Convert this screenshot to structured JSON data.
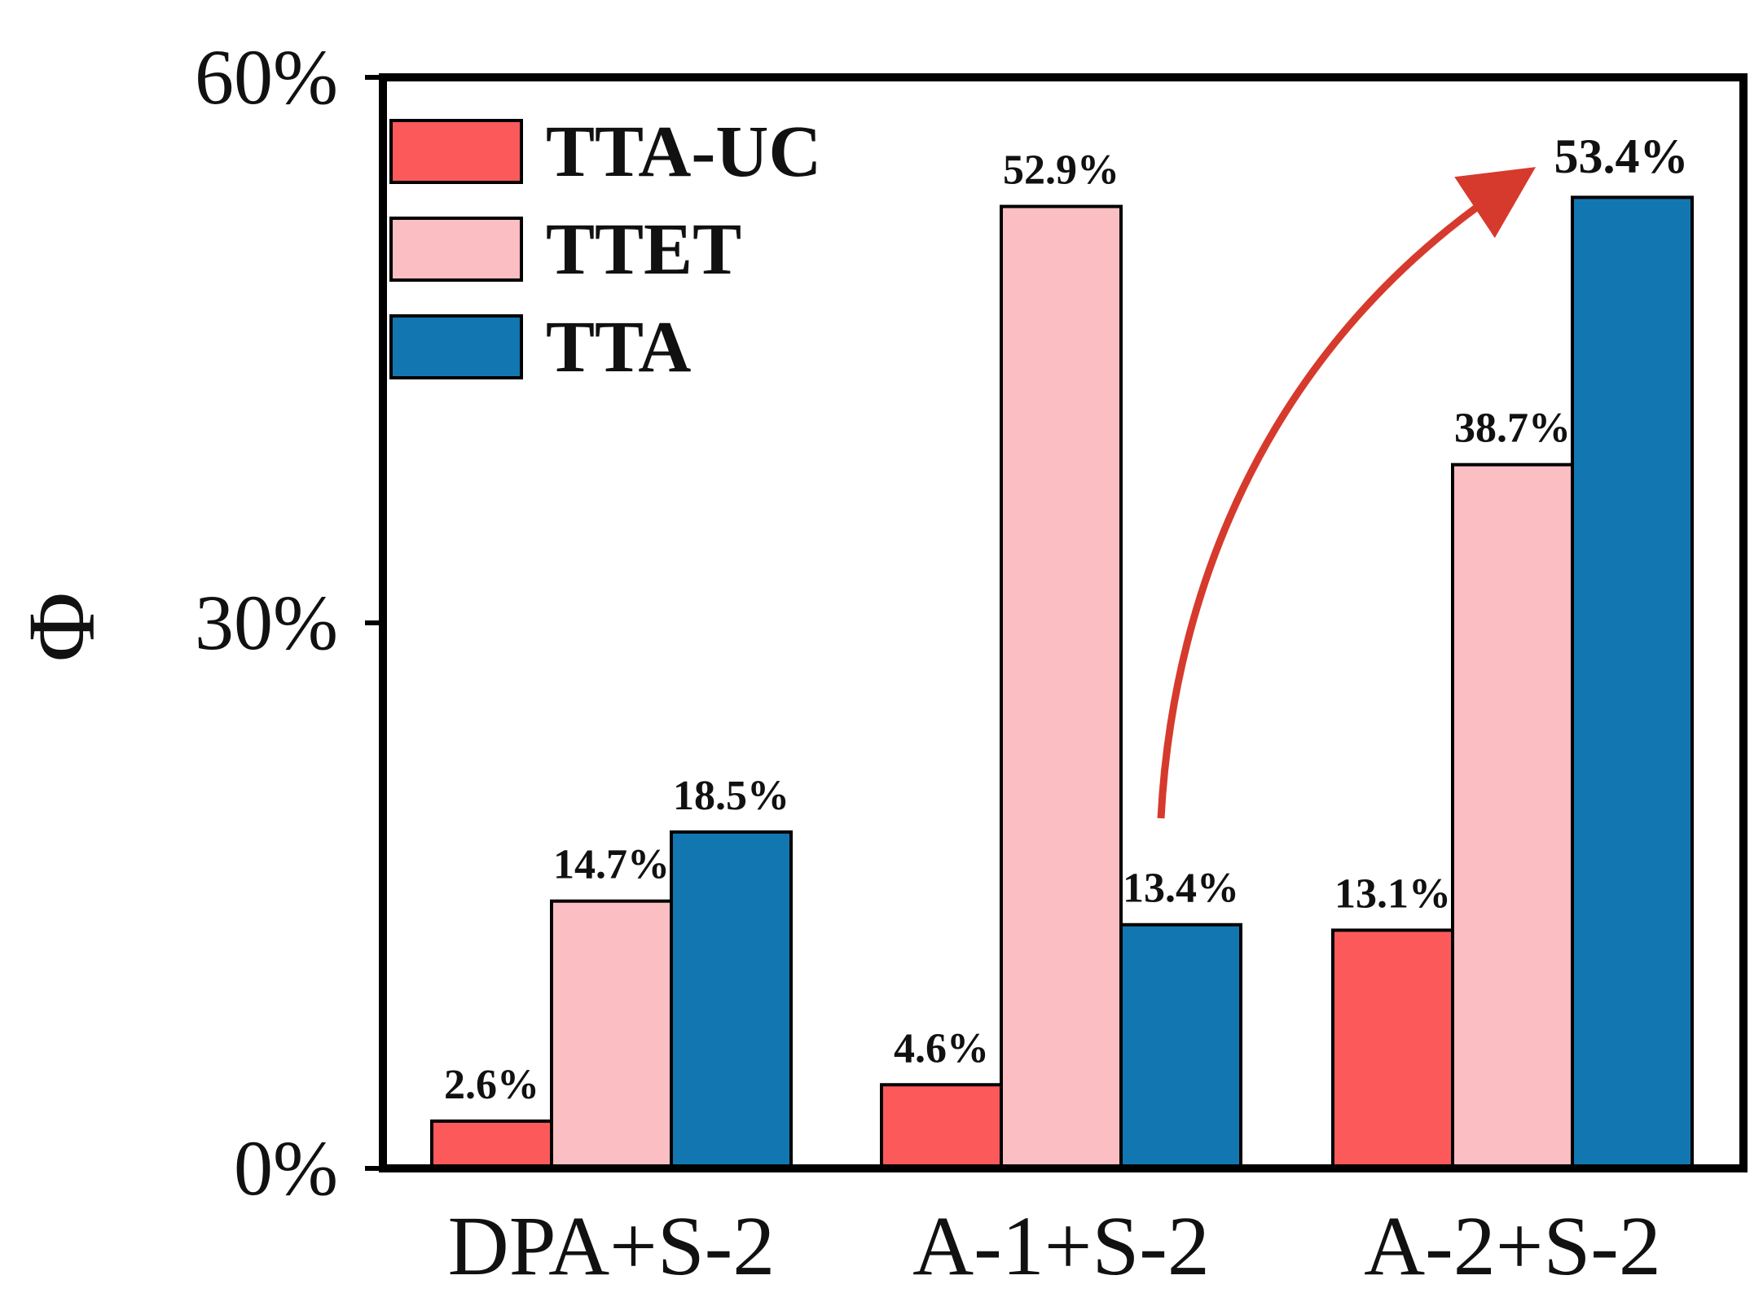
{
  "chart_data": {
    "type": "bar",
    "title": "",
    "xlabel": "",
    "ylabel": "Φ",
    "ylim": [
      0,
      60
    ],
    "yticks": [
      "0%",
      "30%",
      "60%"
    ],
    "categories": [
      "DPA+S-2",
      "A-1+S-2",
      "A-2+S-2"
    ],
    "series": [
      {
        "name": "TTA-UC",
        "color": "#fc5a5a",
        "values": [
          2.6,
          4.6,
          13.1
        ],
        "labels": [
          "2.6%",
          "4.6%",
          "13.1%"
        ]
      },
      {
        "name": "TTET",
        "color": "#fbbec2",
        "values": [
          14.7,
          52.9,
          38.7
        ],
        "labels": [
          "14.7%",
          "52.9%",
          "38.7%"
        ]
      },
      {
        "name": "TTA",
        "color": "#1277b0",
        "values": [
          18.5,
          13.4,
          53.4
        ],
        "labels": [
          "18.5%",
          "13.4%",
          ""
        ]
      }
    ],
    "legend": "top-left",
    "annotation": {
      "text": "53.4%",
      "color": "#ee1c1c",
      "from": "A-1+S-2 TTA",
      "to": "A-2+S-2 TTA"
    }
  }
}
